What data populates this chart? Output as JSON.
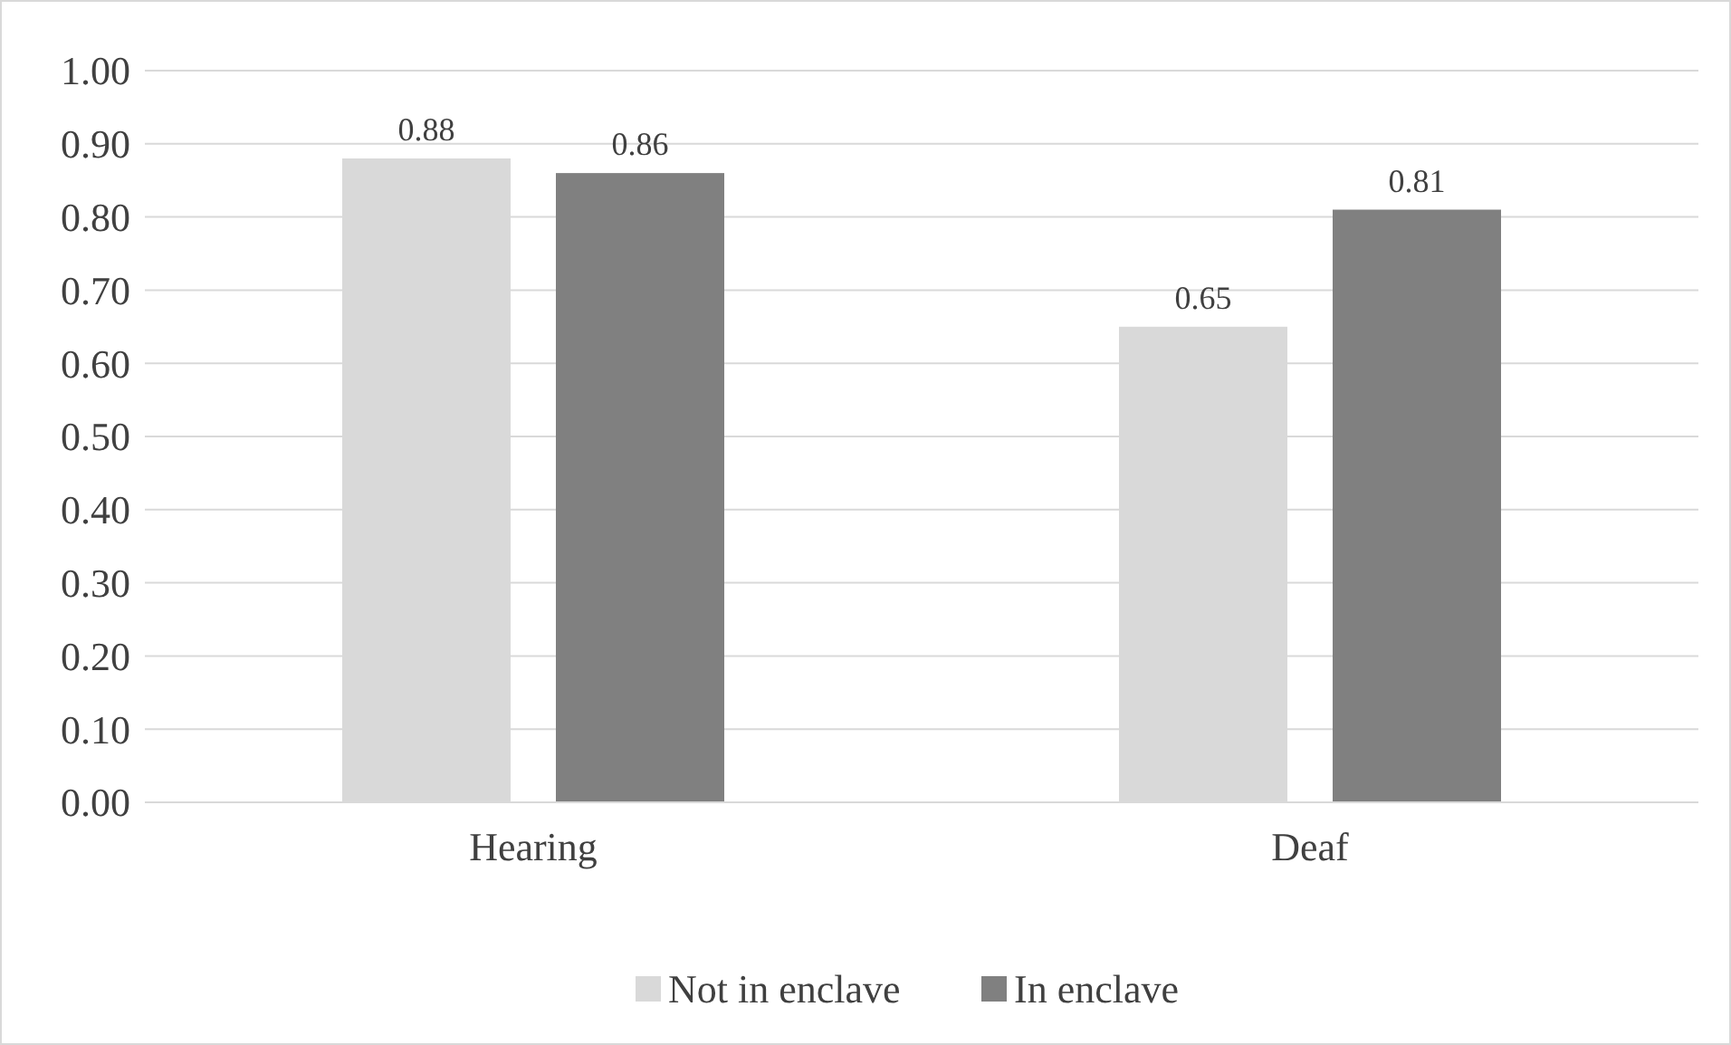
{
  "chart_data": {
    "type": "bar",
    "categories": [
      "Hearing",
      "Deaf"
    ],
    "series": [
      {
        "name": "Not in enclave",
        "color": "#d9d9d9",
        "values": [
          0.88,
          0.65
        ]
      },
      {
        "name": "In enclave",
        "color": "#808080",
        "values": [
          0.86,
          0.81
        ]
      }
    ],
    "ylim": [
      0,
      1
    ],
    "yticks": [
      {
        "value": 0,
        "label": "0.00"
      },
      {
        "value": 0.1,
        "label": "0.10"
      },
      {
        "value": 0.2,
        "label": "0.20"
      },
      {
        "value": 0.3,
        "label": "0.30"
      },
      {
        "value": 0.4,
        "label": "0.40"
      },
      {
        "value": 0.5,
        "label": "0.50"
      },
      {
        "value": 0.6,
        "label": "0.60"
      },
      {
        "value": 0.7,
        "label": "0.70"
      },
      {
        "value": 0.8,
        "label": "0.80"
      },
      {
        "value": 0.9,
        "label": "0.90"
      },
      {
        "value": 1,
        "label": "1.00"
      }
    ],
    "grid": "y",
    "legend": "bottom",
    "data_labels": true
  }
}
